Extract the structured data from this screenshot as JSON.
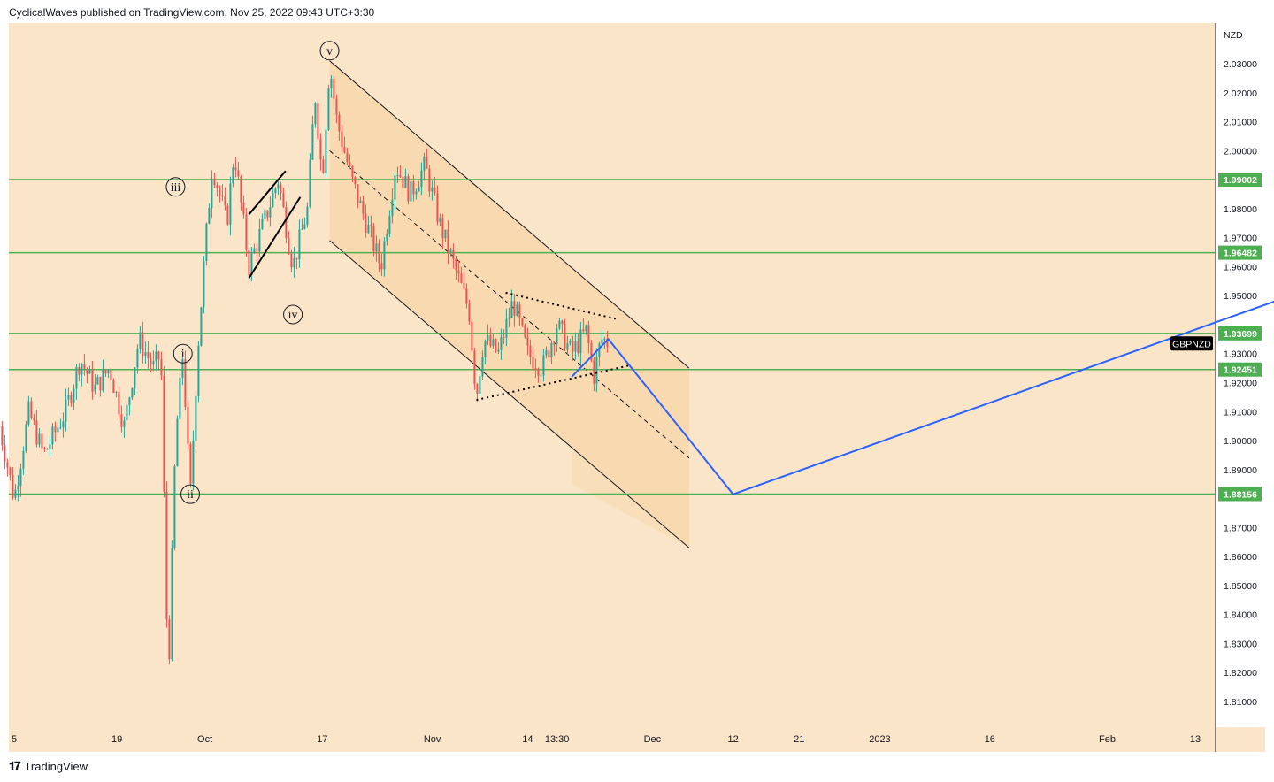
{
  "header": {
    "published": "CyclicalWaves published on TradingView.com, Nov 25, 2022 09:43 UTC+3:30"
  },
  "footer": {
    "brand": "TradingView",
    "logo_icon": "tradingview-logo-icon"
  },
  "colors": {
    "background": "#fbe5c9",
    "channel": "#f9d9b0",
    "bullish": "#26a69a",
    "bearish": "#ef5350",
    "level_line": "#4caf50",
    "projection": "#2962ff"
  },
  "chart_data": {
    "type": "candlestick",
    "symbol": "GBPNZD",
    "currency": "NZD",
    "yaxis": {
      "range": [
        1.8,
        2.04
      ],
      "ticks": [
        "2.03000",
        "2.02000",
        "2.01000",
        "2.00000",
        "1.98000",
        "1.97000",
        "1.96000",
        "1.95000",
        "1.93000",
        "1.92000",
        "1.91000",
        "1.90000",
        "1.89000",
        "1.87000",
        "1.86000",
        "1.85000",
        "1.84000",
        "1.83000",
        "1.82000",
        "1.81000"
      ]
    },
    "xaxis": {
      "ticks": [
        {
          "label": "5",
          "date": "2022-09-05"
        },
        {
          "label": "19",
          "date": "2022-09-19"
        },
        {
          "label": "Oct",
          "date": "2022-10-01"
        },
        {
          "label": "17",
          "date": "2022-10-17"
        },
        {
          "label": "Nov",
          "date": "2022-11-01"
        },
        {
          "label": "14",
          "date": "2022-11-14"
        },
        {
          "label": "13:30",
          "date": "2022-11-18"
        },
        {
          "label": "Dec",
          "date": "2022-12-01"
        },
        {
          "label": "12",
          "date": "2022-12-12"
        },
        {
          "label": "21",
          "date": "2022-12-21"
        },
        {
          "label": "2023",
          "date": "2023-01-01"
        },
        {
          "label": "16",
          "date": "2023-01-16"
        },
        {
          "label": "Feb",
          "date": "2023-02-01"
        },
        {
          "label": "13",
          "date": "2023-02-13"
        }
      ]
    },
    "price_levels": [
      {
        "value": 1.99002,
        "label": "1.99002"
      },
      {
        "value": 1.96482,
        "label": "1.96482"
      },
      {
        "value": 1.93699,
        "label": "1.93699"
      },
      {
        "value": 1.92451,
        "label": "1.92451"
      },
      {
        "value": 1.88156,
        "label": "1.88156"
      }
    ],
    "wave_labels": [
      {
        "label": "i",
        "date": "2022-09-28",
        "price": 1.93
      },
      {
        "label": "ii",
        "date": "2022-09-29",
        "price": 1.8815
      },
      {
        "label": "iii",
        "date": "2022-09-27",
        "price": 1.9875
      },
      {
        "label": "iv",
        "date": "2022-10-13",
        "price": 1.9435
      },
      {
        "label": "v",
        "date": "2022-10-18",
        "price": 2.0345
      }
    ],
    "ohlc_path": [
      [
        "2022-09-03",
        1.905
      ],
      [
        "2022-09-05",
        1.88
      ],
      [
        "2022-09-07",
        1.91
      ],
      [
        "2022-09-09",
        1.895
      ],
      [
        "2022-09-12",
        1.91
      ],
      [
        "2022-09-14",
        1.928
      ],
      [
        "2022-09-16",
        1.918
      ],
      [
        "2022-09-18",
        1.925
      ],
      [
        "2022-09-20",
        1.905
      ],
      [
        "2022-09-22",
        1.935
      ],
      [
        "2022-09-24",
        1.925
      ],
      [
        "2022-09-25",
        1.93
      ],
      [
        "2022-09-26",
        1.815
      ],
      [
        "2022-09-27",
        1.9
      ],
      [
        "2022-09-28",
        1.93
      ],
      [
        "2022-09-29",
        1.88
      ],
      [
        "2022-09-30",
        1.93
      ],
      [
        "2022-10-01",
        1.965
      ],
      [
        "2022-10-02",
        1.995
      ],
      [
        "2022-10-04",
        1.975
      ],
      [
        "2022-10-05",
        2.0
      ],
      [
        "2022-10-07",
        1.96
      ],
      [
        "2022-10-09",
        1.975
      ],
      [
        "2022-10-11",
        1.99
      ],
      [
        "2022-10-13",
        1.96
      ],
      [
        "2022-10-15",
        1.98
      ],
      [
        "2022-10-16",
        2.02
      ],
      [
        "2022-10-17",
        1.99
      ],
      [
        "2022-10-18",
        2.03
      ],
      [
        "2022-10-19",
        2.01
      ],
      [
        "2022-10-21",
        1.99
      ],
      [
        "2022-10-23",
        1.975
      ],
      [
        "2022-10-25",
        1.96
      ],
      [
        "2022-10-27",
        1.995
      ],
      [
        "2022-10-29",
        1.985
      ],
      [
        "2022-10-31",
        1.995
      ],
      [
        "2022-11-02",
        1.975
      ],
      [
        "2022-11-04",
        1.96
      ],
      [
        "2022-11-06",
        1.945
      ],
      [
        "2022-11-07",
        1.915
      ],
      [
        "2022-11-08",
        1.935
      ],
      [
        "2022-11-10",
        1.93
      ],
      [
        "2022-11-12",
        1.948
      ],
      [
        "2022-11-14",
        1.93
      ],
      [
        "2022-11-16",
        1.925
      ],
      [
        "2022-11-18",
        1.94
      ],
      [
        "2022-11-20",
        1.93
      ],
      [
        "2022-11-22",
        1.938
      ],
      [
        "2022-11-23",
        1.922
      ],
      [
        "2022-11-24",
        1.935
      ],
      [
        "2022-11-25",
        1.934
      ]
    ],
    "channel": {
      "upper": [
        [
          "2022-10-18",
          2.031
        ],
        [
          "2022-12-06",
          1.925
        ]
      ],
      "lower": [
        [
          "2022-10-18",
          1.969
        ],
        [
          "2022-12-06",
          1.863
        ]
      ],
      "median": [
        [
          "2022-10-18",
          2.0
        ],
        [
          "2022-12-06",
          1.894
        ]
      ],
      "shade_end": "2022-12-06"
    },
    "diagonal_lines": [
      [
        [
          "2022-10-07",
          1.978
        ],
        [
          "2022-10-12",
          1.993
        ]
      ],
      [
        [
          "2022-10-07",
          1.956
        ],
        [
          "2022-10-14",
          1.984
        ]
      ]
    ],
    "triangle": {
      "upper": [
        [
          "2022-11-11",
          1.951
        ],
        [
          "2022-11-26",
          1.942
        ]
      ],
      "lower": [
        [
          "2022-11-07",
          1.914
        ],
        [
          "2022-11-28",
          1.926
        ]
      ]
    },
    "projection": [
      [
        "2022-11-20",
        1.922
      ],
      [
        "2022-11-25",
        1.935
      ],
      [
        "2022-12-12",
        1.8815
      ],
      [
        "2023-02-26",
        1.95
      ]
    ],
    "candle_seed": 7,
    "grid": false,
    "legend": "none"
  }
}
